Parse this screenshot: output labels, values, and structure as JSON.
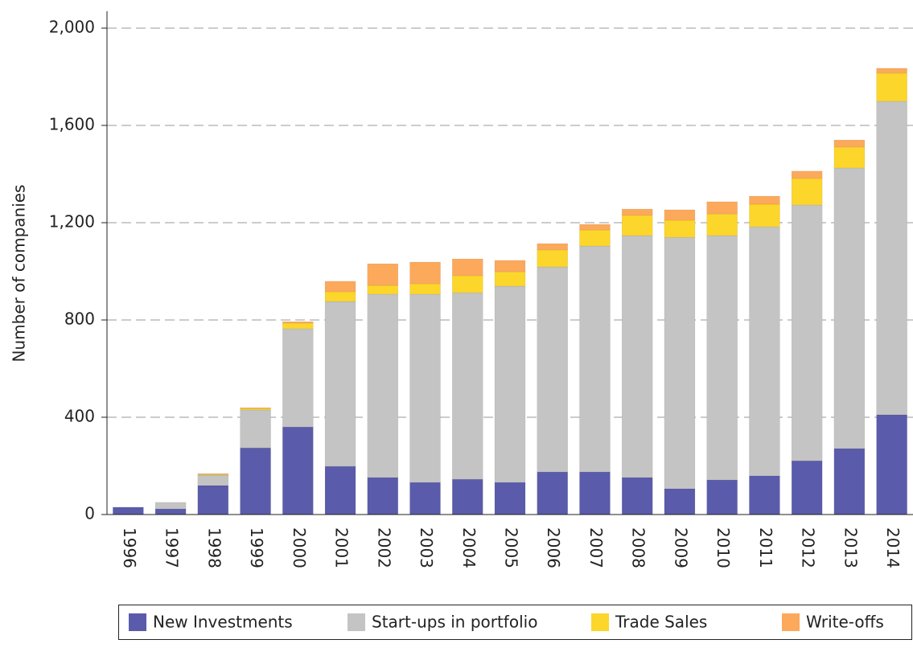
{
  "chart_data": {
    "type": "bar",
    "stacked": true,
    "y_label": "Number of companies",
    "categories": [
      "1996",
      "1997",
      "1998",
      "1999",
      "2000",
      "2001",
      "2002",
      "2003",
      "2004",
      "2005",
      "2006",
      "2007",
      "2008",
      "2009",
      "2010",
      "2011",
      "2012",
      "2013",
      "2014"
    ],
    "series": [
      {
        "name": "New Investments",
        "color": "#5b5bab",
        "values": [
          30,
          23,
          119,
          274,
          360,
          198,
          152,
          132,
          145,
          132,
          175,
          175,
          152,
          106,
          142,
          159,
          221,
          271,
          410
        ]
      },
      {
        "name": "Start-ups in portfolio",
        "color": "#c4c4c4",
        "values": [
          0,
          27,
          43,
          156,
          404,
          678,
          754,
          774,
          767,
          807,
          843,
          929,
          995,
          1034,
          1005,
          1024,
          1052,
          1154,
          1289
        ]
      },
      {
        "name": "Trade Sales",
        "color": "#fcd62a",
        "values": [
          0,
          0,
          3,
          6,
          23,
          40,
          36,
          43,
          70,
          59,
          70,
          66,
          83,
          70,
          89,
          93,
          109,
          86,
          116
        ]
      },
      {
        "name": "Write-offs",
        "color": "#fca95b",
        "values": [
          0,
          0,
          3,
          3,
          6,
          43,
          89,
          89,
          69,
          47,
          26,
          23,
          26,
          43,
          50,
          33,
          30,
          29,
          20
        ]
      }
    ],
    "ylim": [
      0,
      2000
    ],
    "yticks": [
      0,
      400,
      800,
      {
        "value": 1200,
        "label": "1,200"
      },
      {
        "value": 1600,
        "label": "1,600"
      },
      {
        "value": 2000,
        "label": "2,000"
      }
    ],
    "grid": true,
    "legend": "bottom"
  }
}
